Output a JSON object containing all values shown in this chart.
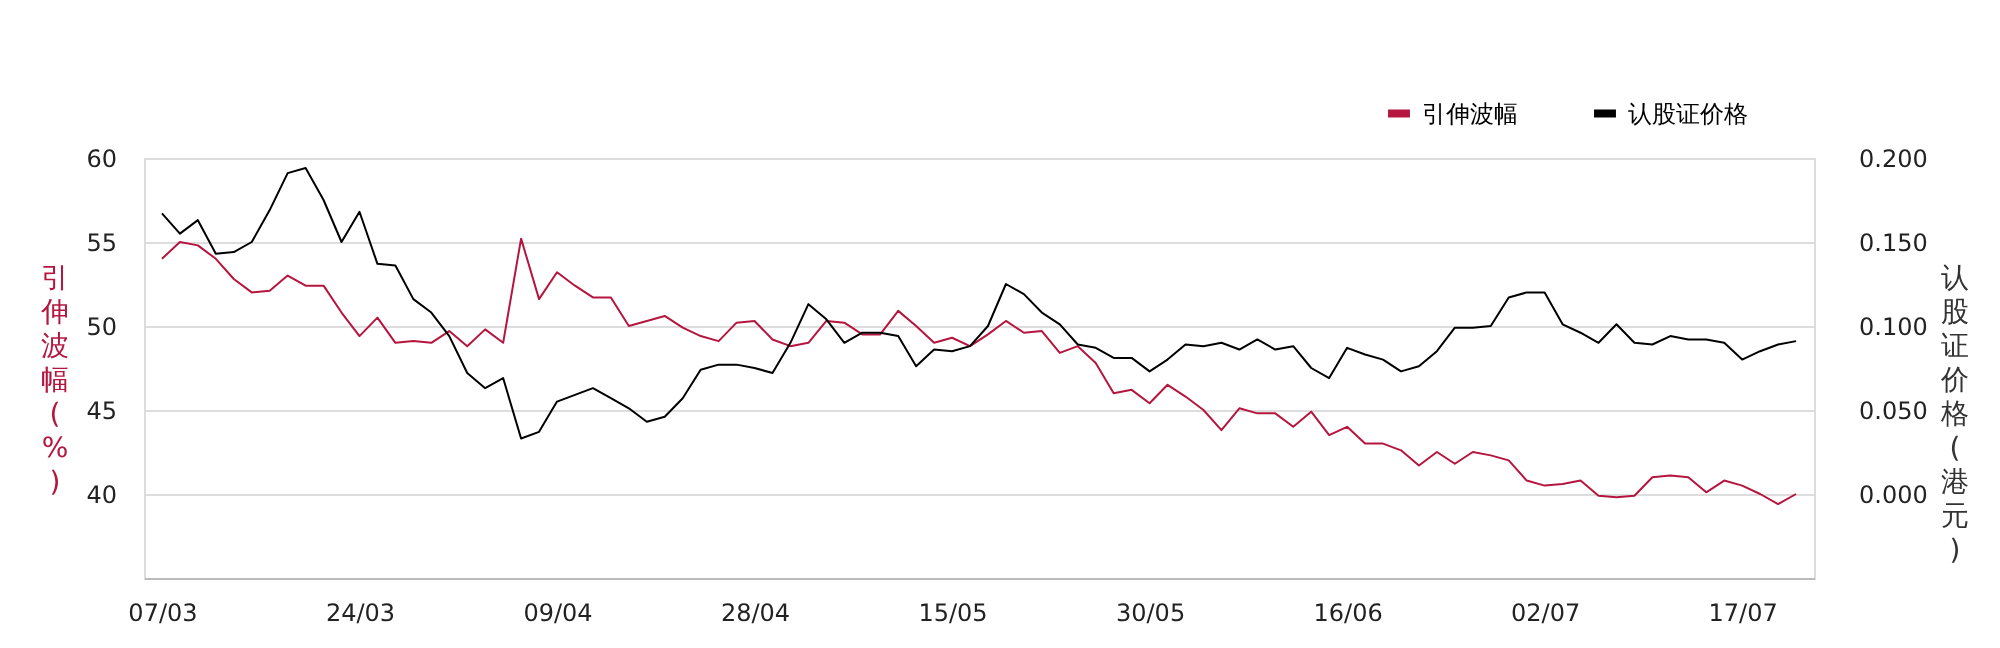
{
  "chart_data": {
    "type": "line",
    "categories": [
      "07/03",
      null,
      null,
      null,
      null,
      null,
      null,
      null,
      null,
      null,
      null,
      "24/03",
      null,
      null,
      null,
      null,
      null,
      null,
      null,
      null,
      null,
      null,
      "09/04",
      null,
      null,
      null,
      null,
      null,
      null,
      null,
      null,
      null,
      null,
      "28/04",
      null,
      null,
      null,
      null,
      null,
      null,
      null,
      null,
      null,
      null,
      "15/05",
      null,
      null,
      null,
      null,
      null,
      null,
      null,
      null,
      null,
      null,
      "30/05",
      null,
      null,
      null,
      null,
      null,
      null,
      null,
      null,
      null,
      null,
      "16/06",
      null,
      null,
      null,
      null,
      null,
      null,
      null,
      null,
      null,
      null,
      "02/07",
      null,
      null,
      null,
      null,
      null,
      null,
      null,
      null,
      null,
      null,
      "17/07",
      null,
      null,
      null
    ],
    "series": [
      {
        "name": "引伸波幅",
        "color": "#b5163f",
        "values": [
          54.0,
          55.0,
          54.8,
          54.0,
          52.8,
          52.0,
          52.1,
          53.0,
          52.4,
          52.4,
          50.8,
          49.4,
          50.5,
          49.0,
          49.1,
          49.0,
          49.7,
          48.8,
          49.8,
          49.0,
          55.2,
          51.6,
          53.2,
          52.4,
          51.7,
          51.7,
          50.0,
          50.3,
          50.6,
          49.9,
          49.4,
          49.1,
          50.2,
          50.3,
          49.2,
          48.8,
          49.0,
          50.3,
          50.2,
          49.5,
          49.5,
          50.9,
          50.0,
          49.0,
          49.3,
          48.8,
          49.5,
          50.3,
          49.6,
          49.7,
          48.4,
          48.8,
          47.8,
          46.0,
          46.2,
          45.4,
          46.5,
          45.8,
          45.0,
          43.8,
          45.1,
          44.8,
          44.8,
          44.0,
          44.9,
          43.5,
          44.0,
          43.0,
          43.0,
          42.6,
          41.7,
          42.5,
          41.8,
          42.5,
          42.3,
          42.0,
          40.8,
          40.5,
          40.6,
          40.8,
          39.9,
          39.8,
          39.9,
          41.0,
          41.1,
          41.0,
          40.1,
          40.8,
          40.5,
          40.0,
          39.4,
          40.0
        ]
      },
      {
        "name": "认股证价格",
        "color": "#000000",
        "axis": "y2",
        "values": [
          0.167,
          0.155,
          0.163,
          0.143,
          0.144,
          0.15,
          0.169,
          0.191,
          0.194,
          0.175,
          0.15,
          0.168,
          0.137,
          0.136,
          0.116,
          0.108,
          0.094,
          0.072,
          0.063,
          0.069,
          0.033,
          0.037,
          0.055,
          0.059,
          0.063,
          0.057,
          0.051,
          0.043,
          0.046,
          0.057,
          0.074,
          0.077,
          0.077,
          0.075,
          0.072,
          0.09,
          0.113,
          0.104,
          0.09,
          0.096,
          0.096,
          0.094,
          0.076,
          0.086,
          0.085,
          0.088,
          0.1,
          0.125,
          0.119,
          0.108,
          0.101,
          0.089,
          0.087,
          0.081,
          0.081,
          0.073,
          0.08,
          0.089,
          0.088,
          0.09,
          0.086,
          0.092,
          0.086,
          0.088,
          0.075,
          0.069,
          0.087,
          0.083,
          0.08,
          0.073,
          0.076,
          0.085,
          0.099,
          0.099,
          0.1,
          0.117,
          0.12,
          0.12,
          0.101,
          0.096,
          0.09,
          0.101,
          0.09,
          0.089,
          0.094,
          0.092,
          0.092,
          0.09,
          0.08,
          0.085,
          0.089,
          0.091
        ]
      }
    ],
    "ylabel": "引伸波幅(%)",
    "y2label": "认股证价格(港元)",
    "ylim": [
      35,
      60
    ],
    "yticks": [
      40,
      45,
      50,
      55,
      60
    ],
    "y2lim": [
      -0.05,
      0.2
    ],
    "y2ticks": [
      {
        "value": 0,
        "label": "0.000"
      },
      {
        "value": 0.05,
        "label": "0.050"
      },
      {
        "value": 0.1,
        "label": "0.100"
      },
      {
        "value": 0.15,
        "label": "0.150"
      },
      {
        "value": 0.2,
        "label": "0.200"
      }
    ],
    "grid": "y",
    "legend": "top right",
    "marker": "none",
    "line_style": "solid"
  }
}
